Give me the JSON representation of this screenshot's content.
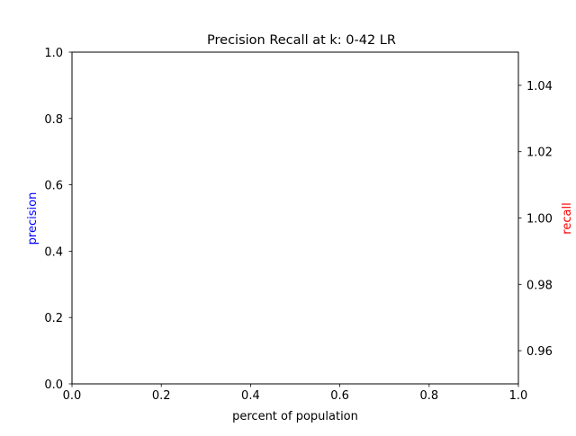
{
  "chart_data": {
    "type": "line",
    "title": "Precision Recall at k: 0-42 LR",
    "xlabel": "percent of population",
    "ylabel_left": "precision",
    "ylabel_right": "recall",
    "xlim": [
      0.0,
      1.0
    ],
    "ylim_left": [
      0.0,
      1.0
    ],
    "ylim_right": [
      0.95,
      1.05
    ],
    "x_ticks": [
      {
        "value": 0.0,
        "label": "0.0"
      },
      {
        "value": 0.2,
        "label": "0.2"
      },
      {
        "value": 0.4,
        "label": "0.4"
      },
      {
        "value": 0.6,
        "label": "0.6"
      },
      {
        "value": 0.8,
        "label": "0.8"
      },
      {
        "value": 1.0,
        "label": "1.0"
      }
    ],
    "y_left_ticks": [
      {
        "value": 0.0,
        "label": "0.0"
      },
      {
        "value": 0.2,
        "label": "0.2"
      },
      {
        "value": 0.4,
        "label": "0.4"
      },
      {
        "value": 0.6,
        "label": "0.6"
      },
      {
        "value": 0.8,
        "label": "0.8"
      },
      {
        "value": 1.0,
        "label": "1.0"
      }
    ],
    "y_right_ticks": [
      {
        "value": 0.96,
        "label": "0.96"
      },
      {
        "value": 0.98,
        "label": "0.98"
      },
      {
        "value": 1.0,
        "label": "1.00"
      },
      {
        "value": 1.02,
        "label": "1.02"
      },
      {
        "value": 1.04,
        "label": "1.04"
      }
    ],
    "series": [],
    "grid": false,
    "colors": {
      "left_axis_label": "#0000ff",
      "right_axis_label": "#ff0000",
      "axes": "#000000",
      "text": "#000000"
    }
  }
}
